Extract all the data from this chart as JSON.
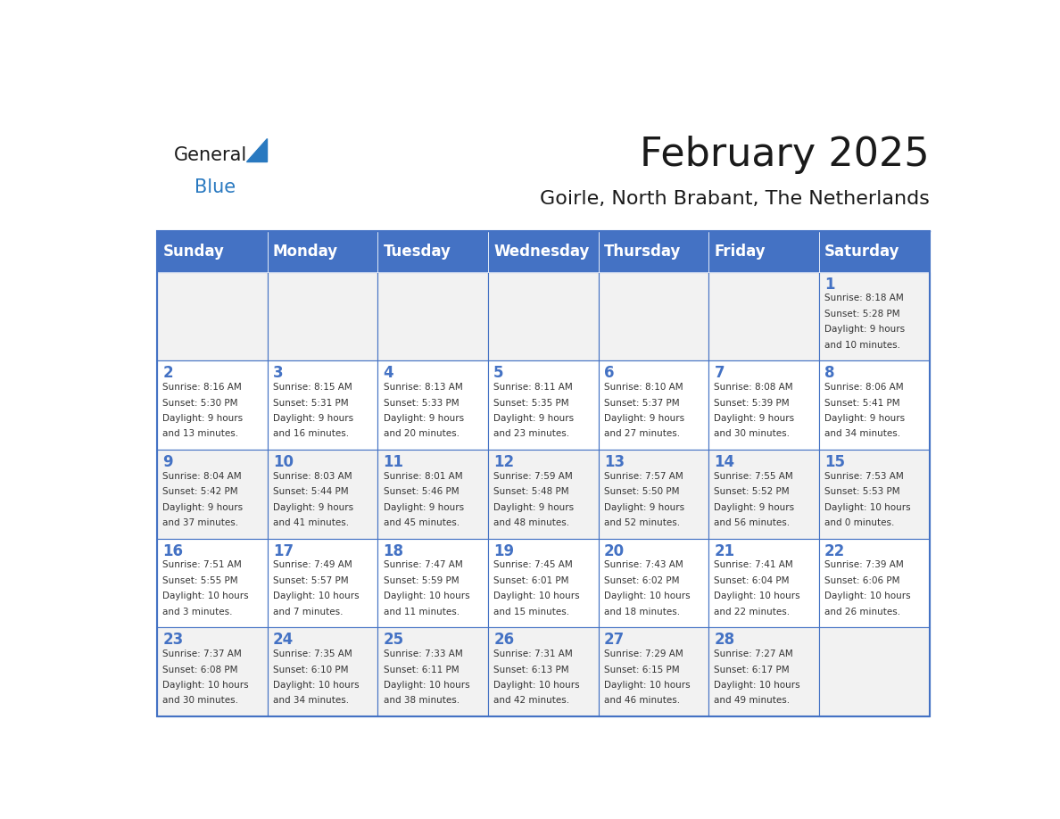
{
  "title": "February 2025",
  "subtitle": "Goirle, North Brabant, The Netherlands",
  "header_color": "#4472C4",
  "header_text_color": "#FFFFFF",
  "cell_bg_color": "#F2F2F2",
  "alt_cell_bg_color": "#FFFFFF",
  "border_color": "#4472C4",
  "day_names": [
    "Sunday",
    "Monday",
    "Tuesday",
    "Wednesday",
    "Thursday",
    "Friday",
    "Saturday"
  ],
  "title_color": "#1a1a1a",
  "subtitle_color": "#1a1a1a",
  "days": [
    {
      "day": 1,
      "col": 6,
      "row": 0,
      "sunrise": "8:18 AM",
      "sunset": "5:28 PM",
      "daylight": "9 hours and 10 minutes."
    },
    {
      "day": 2,
      "col": 0,
      "row": 1,
      "sunrise": "8:16 AM",
      "sunset": "5:30 PM",
      "daylight": "9 hours and 13 minutes."
    },
    {
      "day": 3,
      "col": 1,
      "row": 1,
      "sunrise": "8:15 AM",
      "sunset": "5:31 PM",
      "daylight": "9 hours and 16 minutes."
    },
    {
      "day": 4,
      "col": 2,
      "row": 1,
      "sunrise": "8:13 AM",
      "sunset": "5:33 PM",
      "daylight": "9 hours and 20 minutes."
    },
    {
      "day": 5,
      "col": 3,
      "row": 1,
      "sunrise": "8:11 AM",
      "sunset": "5:35 PM",
      "daylight": "9 hours and 23 minutes."
    },
    {
      "day": 6,
      "col": 4,
      "row": 1,
      "sunrise": "8:10 AM",
      "sunset": "5:37 PM",
      "daylight": "9 hours and 27 minutes."
    },
    {
      "day": 7,
      "col": 5,
      "row": 1,
      "sunrise": "8:08 AM",
      "sunset": "5:39 PM",
      "daylight": "9 hours and 30 minutes."
    },
    {
      "day": 8,
      "col": 6,
      "row": 1,
      "sunrise": "8:06 AM",
      "sunset": "5:41 PM",
      "daylight": "9 hours and 34 minutes."
    },
    {
      "day": 9,
      "col": 0,
      "row": 2,
      "sunrise": "8:04 AM",
      "sunset": "5:42 PM",
      "daylight": "9 hours and 37 minutes."
    },
    {
      "day": 10,
      "col": 1,
      "row": 2,
      "sunrise": "8:03 AM",
      "sunset": "5:44 PM",
      "daylight": "9 hours and 41 minutes."
    },
    {
      "day": 11,
      "col": 2,
      "row": 2,
      "sunrise": "8:01 AM",
      "sunset": "5:46 PM",
      "daylight": "9 hours and 45 minutes."
    },
    {
      "day": 12,
      "col": 3,
      "row": 2,
      "sunrise": "7:59 AM",
      "sunset": "5:48 PM",
      "daylight": "9 hours and 48 minutes."
    },
    {
      "day": 13,
      "col": 4,
      "row": 2,
      "sunrise": "7:57 AM",
      "sunset": "5:50 PM",
      "daylight": "9 hours and 52 minutes."
    },
    {
      "day": 14,
      "col": 5,
      "row": 2,
      "sunrise": "7:55 AM",
      "sunset": "5:52 PM",
      "daylight": "9 hours and 56 minutes."
    },
    {
      "day": 15,
      "col": 6,
      "row": 2,
      "sunrise": "7:53 AM",
      "sunset": "5:53 PM",
      "daylight": "10 hours and 0 minutes."
    },
    {
      "day": 16,
      "col": 0,
      "row": 3,
      "sunrise": "7:51 AM",
      "sunset": "5:55 PM",
      "daylight": "10 hours and 3 minutes."
    },
    {
      "day": 17,
      "col": 1,
      "row": 3,
      "sunrise": "7:49 AM",
      "sunset": "5:57 PM",
      "daylight": "10 hours and 7 minutes."
    },
    {
      "day": 18,
      "col": 2,
      "row": 3,
      "sunrise": "7:47 AM",
      "sunset": "5:59 PM",
      "daylight": "10 hours and 11 minutes."
    },
    {
      "day": 19,
      "col": 3,
      "row": 3,
      "sunrise": "7:45 AM",
      "sunset": "6:01 PM",
      "daylight": "10 hours and 15 minutes."
    },
    {
      "day": 20,
      "col": 4,
      "row": 3,
      "sunrise": "7:43 AM",
      "sunset": "6:02 PM",
      "daylight": "10 hours and 18 minutes."
    },
    {
      "day": 21,
      "col": 5,
      "row": 3,
      "sunrise": "7:41 AM",
      "sunset": "6:04 PM",
      "daylight": "10 hours and 22 minutes."
    },
    {
      "day": 22,
      "col": 6,
      "row": 3,
      "sunrise": "7:39 AM",
      "sunset": "6:06 PM",
      "daylight": "10 hours and 26 minutes."
    },
    {
      "day": 23,
      "col": 0,
      "row": 4,
      "sunrise": "7:37 AM",
      "sunset": "6:08 PM",
      "daylight": "10 hours and 30 minutes."
    },
    {
      "day": 24,
      "col": 1,
      "row": 4,
      "sunrise": "7:35 AM",
      "sunset": "6:10 PM",
      "daylight": "10 hours and 34 minutes."
    },
    {
      "day": 25,
      "col": 2,
      "row": 4,
      "sunrise": "7:33 AM",
      "sunset": "6:11 PM",
      "daylight": "10 hours and 38 minutes."
    },
    {
      "day": 26,
      "col": 3,
      "row": 4,
      "sunrise": "7:31 AM",
      "sunset": "6:13 PM",
      "daylight": "10 hours and 42 minutes."
    },
    {
      "day": 27,
      "col": 4,
      "row": 4,
      "sunrise": "7:29 AM",
      "sunset": "6:15 PM",
      "daylight": "10 hours and 46 minutes."
    },
    {
      "day": 28,
      "col": 5,
      "row": 4,
      "sunrise": "7:27 AM",
      "sunset": "6:17 PM",
      "daylight": "10 hours and 49 minutes."
    }
  ],
  "logo_general_color": "#1a1a1a",
  "logo_blue_color": "#2979C0",
  "logo_triangle_color": "#2979C0"
}
